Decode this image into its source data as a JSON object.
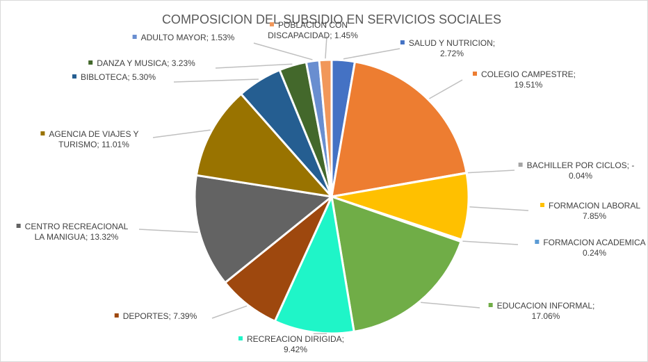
{
  "chart_data": {
    "type": "pie",
    "title": "COMPOSICION  DEL SUBSIDIO EN SERVICIOS SOCIALES",
    "categories": [
      "SALUD Y NUTRICION;\n2.72%",
      "COLEGIO CAMPESTRE;\n19.51%",
      "BACHILLER POR CICLOS; -\n0.04%",
      "FORMACION LABORAL\n7.85%",
      "FORMACION ACADEMICA\n0.24%",
      "EDUCACION INFORMAL;\n17.06%",
      "RECREACION DIRIGIDA;\n9.42%",
      "DEPORTES; 7.39%",
      "CENTRO RECREACIONAL\nLA MANIGUA; 13.32%",
      "AGENCIA DE VIAJES Y\nTURISMO; 11.01%",
      "BIBLOTECA; 5.30%",
      "DANZA Y MUSICA; 3.23%",
      "ADULTO MAYOR; 1.53%",
      "POBLACION CON\nDISCAPACIDAD; 1.45%"
    ],
    "values": [
      2.72,
      19.51,
      0.04,
      7.85,
      0.24,
      17.06,
      9.42,
      7.39,
      13.32,
      11.01,
      5.3,
      3.23,
      1.53,
      1.45
    ],
    "colors": [
      "#4472c4",
      "#ed7d31",
      "#a5a5a5",
      "#ffc000",
      "#5b9bd5",
      "#70ad47",
      "#1ff5c8",
      "#9e480e",
      "#636363",
      "#997300",
      "#255e91",
      "#43682b",
      "#698ed0",
      "#f1975a"
    ]
  }
}
